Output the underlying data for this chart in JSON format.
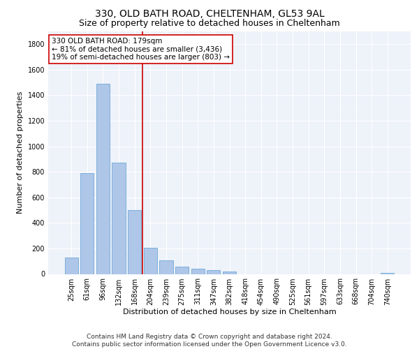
{
  "title1": "330, OLD BATH ROAD, CHELTENHAM, GL53 9AL",
  "title2": "Size of property relative to detached houses in Cheltenham",
  "xlabel": "Distribution of detached houses by size in Cheltenham",
  "ylabel": "Number of detached properties",
  "categories": [
    "25sqm",
    "61sqm",
    "96sqm",
    "132sqm",
    "168sqm",
    "204sqm",
    "239sqm",
    "275sqm",
    "311sqm",
    "347sqm",
    "382sqm",
    "418sqm",
    "454sqm",
    "490sqm",
    "525sqm",
    "561sqm",
    "597sqm",
    "633sqm",
    "668sqm",
    "704sqm",
    "740sqm"
  ],
  "values": [
    130,
    790,
    1490,
    870,
    500,
    205,
    105,
    55,
    40,
    30,
    20,
    0,
    0,
    0,
    0,
    0,
    0,
    0,
    0,
    0,
    10
  ],
  "bar_color": "#aec6e8",
  "bar_edge_color": "#5a9fd4",
  "vline_color": "#cc0000",
  "annotation_text": "330 OLD BATH ROAD: 179sqm\n← 81% of detached houses are smaller (3,436)\n19% of semi-detached houses are larger (803) →",
  "annotation_box_color": "#ffffff",
  "annotation_box_edge_color": "#cc0000",
  "ylim": [
    0,
    1900
  ],
  "yticks": [
    0,
    200,
    400,
    600,
    800,
    1000,
    1200,
    1400,
    1600,
    1800
  ],
  "footer_text": "Contains HM Land Registry data © Crown copyright and database right 2024.\nContains public sector information licensed under the Open Government Licence v3.0.",
  "bg_color": "#eef2f9",
  "grid_color": "#ffffff",
  "title_fontsize": 10,
  "subtitle_fontsize": 9,
  "axis_label_fontsize": 8,
  "tick_fontsize": 7,
  "annotation_fontsize": 7.5,
  "footer_fontsize": 6.5
}
